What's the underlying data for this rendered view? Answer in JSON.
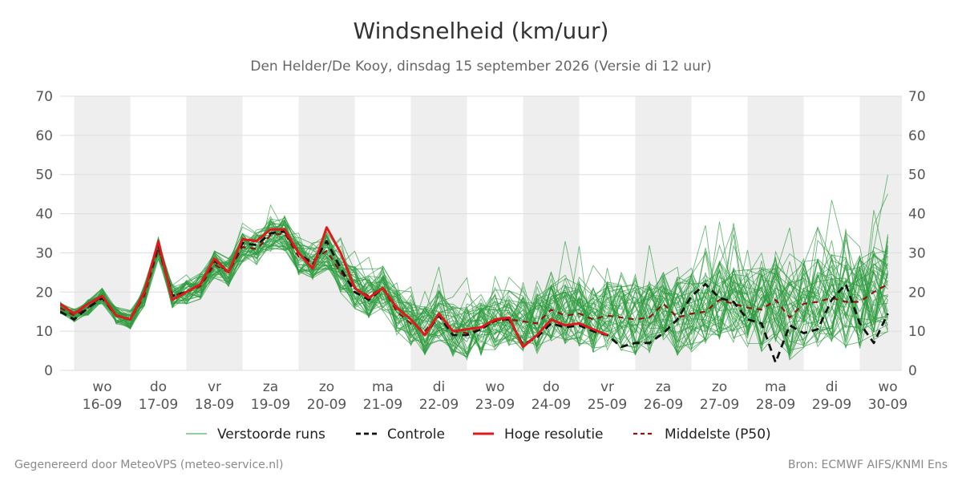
{
  "title": "Windsnelheid (km/uur)",
  "subtitle": "Den Helder/De Kooy, dinsdag 15 september 2026 (Versie di 12 uur)",
  "footer": {
    "left": "Gegenereerd door MeteoVPS (meteo-service.nl)",
    "right": "Bron: ECMWF AIFS/KNMI Ens"
  },
  "colors": {
    "ensemble": "#2e9b3e",
    "control": "#111111",
    "high_res": "#e0191b",
    "median": "#8b1515",
    "band": "#eeeeee",
    "grid": "#dddddd"
  },
  "chart_data": {
    "type": "line",
    "title": "Windsnelheid (km/uur)",
    "ylim": [
      0,
      70
    ],
    "yticks": [
      0,
      10,
      20,
      30,
      40,
      50,
      60,
      70
    ],
    "xlim": [
      -0.25,
      14.75
    ],
    "x_unit": "days from 16-09 00:00",
    "grid": "horizontal",
    "shaded_days": [
      0,
      2,
      4,
      6,
      8,
      10,
      12,
      14
    ],
    "x_ticks": [
      {
        "day": "wo",
        "date": "16-09"
      },
      {
        "day": "do",
        "date": "17-09"
      },
      {
        "day": "vr",
        "date": "18-09"
      },
      {
        "day": "za",
        "date": "19-09"
      },
      {
        "day": "zo",
        "date": "20-09"
      },
      {
        "day": "ma",
        "date": "21-09"
      },
      {
        "day": "di",
        "date": "22-09"
      },
      {
        "day": "wo",
        "date": "23-09"
      },
      {
        "day": "do",
        "date": "24-09"
      },
      {
        "day": "vr",
        "date": "25-09"
      },
      {
        "day": "za",
        "date": "26-09"
      },
      {
        "day": "zo",
        "date": "27-09"
      },
      {
        "day": "ma",
        "date": "28-09"
      },
      {
        "day": "di",
        "date": "29-09"
      },
      {
        "day": "wo",
        "date": "30-09"
      }
    ],
    "legend": [
      {
        "label": "Verstoorde runs",
        "style": "ensemble"
      },
      {
        "label": "Controle",
        "style": "control"
      },
      {
        "label": "Hoge resolutie",
        "style": "high_res"
      },
      {
        "label": "Middelste (P50)",
        "style": "median"
      }
    ],
    "legend_position": "bottom",
    "step_days": 0.25,
    "series": [
      {
        "name": "Hoge resolutie",
        "style": "high_res",
        "x_start": -0.25,
        "values": [
          17,
          14.5,
          17,
          19,
          14,
          13,
          20,
          33,
          18,
          20,
          22,
          28.5,
          25,
          33.5,
          33,
          36,
          36,
          30,
          26,
          36.5,
          30,
          21,
          18.5,
          21,
          16,
          13,
          9,
          14.5,
          10,
          10.5,
          11,
          13,
          13.5,
          6,
          9,
          13,
          11.5,
          12,
          10.5,
          9
        ]
      },
      {
        "name": "Middelste (P50)",
        "style": "median",
        "x_start": -0.25,
        "values": [
          16,
          14,
          16,
          19,
          14,
          13,
          19,
          31,
          19,
          20,
          21.5,
          27,
          25,
          31.5,
          31,
          34.5,
          35,
          29,
          28,
          30.5,
          25,
          21,
          19,
          21,
          15,
          12,
          10,
          14,
          10,
          9.5,
          10.5,
          12.5,
          13,
          12.5,
          12,
          15.5,
          14,
          14.5,
          13,
          14,
          13.5,
          13,
          13.5,
          17,
          13.5,
          14.5,
          15,
          18,
          17,
          16,
          15.5,
          18,
          13.5,
          17,
          17.5,
          18.5,
          17.5,
          17.5,
          20,
          22
        ]
      },
      {
        "name": "Controle",
        "style": "control",
        "x_start": -0.25,
        "values": [
          15,
          13,
          16,
          18.5,
          14,
          13,
          20,
          32,
          19,
          20,
          22,
          28,
          25,
          32.5,
          32,
          35,
          35.5,
          30,
          27,
          33,
          26,
          20,
          18,
          21,
          16,
          13,
          9,
          14,
          9,
          9,
          10.5,
          13,
          13,
          6.5,
          8.5,
          12,
          11,
          11.5,
          10,
          9,
          6,
          7,
          7,
          9.5,
          13,
          19,
          22,
          18.5,
          17.5,
          13,
          12,
          2,
          11.5,
          9.5,
          10.5,
          18,
          22,
          12,
          7,
          14.5
        ]
      }
    ]
  }
}
